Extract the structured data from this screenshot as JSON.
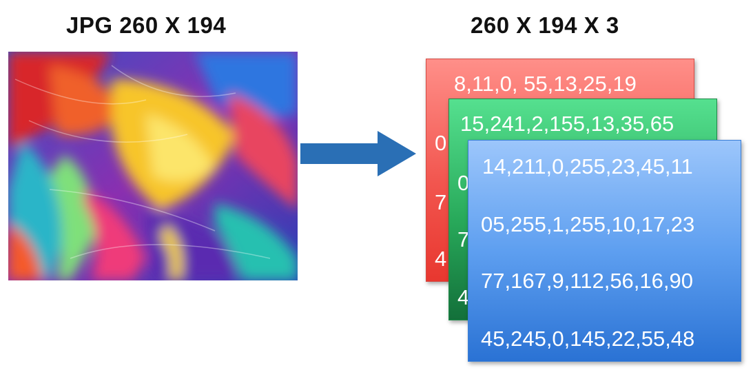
{
  "titles": {
    "left": "JPG 260 X 194",
    "right": "260 X 194 X 3"
  },
  "image": {
    "icon": "abstract-colorful-painting",
    "colors": [
      "#e8322c",
      "#f7d428",
      "#2e7ae0",
      "#7a2fb3",
      "#2bc7b8",
      "#f58a1f"
    ]
  },
  "arrow": {
    "icon": "right-arrow-icon",
    "color": "#2a6fb5"
  },
  "layers": {
    "red": {
      "color": "#f2564f",
      "rows": [
        "8,11,0, 55,13,25,19",
        "0",
        "7",
        "4"
      ]
    },
    "green": {
      "color": "#28a95a",
      "rows": [
        "15,241,2,155,13,35,65",
        "0",
        "7",
        "4"
      ]
    },
    "blue": {
      "color": "#5e9ff0",
      "rows": [
        "14,211,0,255,23,45,11",
        "05,255,1,255,10,17,23",
        "77,167,9,112,56,16,90",
        "45,245,0,145,22,55,48"
      ]
    }
  }
}
